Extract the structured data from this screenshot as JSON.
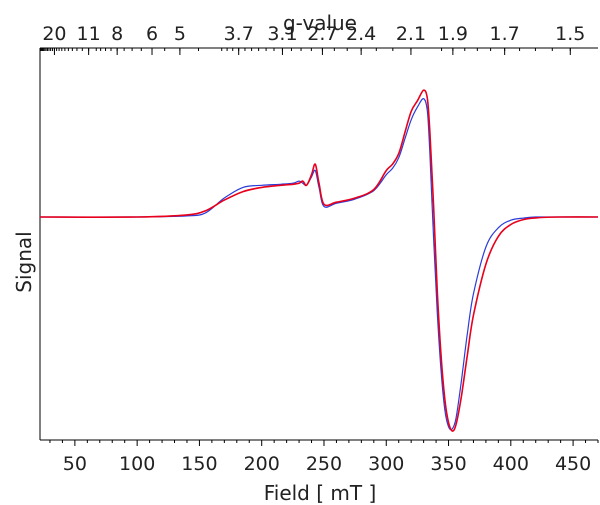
{
  "chart_data": {
    "type": "line",
    "xlabel": "Field [ mT ]",
    "ylabel": "Signal",
    "top_axis_label": "g-value",
    "xlim": [
      22,
      470
    ],
    "ylim": [
      -1.0,
      0.62
    ],
    "x_ticks": [
      50,
      100,
      150,
      200,
      250,
      300,
      350,
      400,
      450
    ],
    "x_tick_labels": [
      "50",
      "100",
      "150",
      "200",
      "250",
      "300",
      "350",
      "400",
      "450"
    ],
    "g_ticks": [
      20,
      11,
      8,
      6,
      5,
      3.7,
      3.1,
      2.7,
      2.4,
      2.1,
      1.9,
      1.7,
      1.5
    ],
    "g_tick_labels": [
      "20",
      "11",
      "8",
      "6",
      "5",
      "3.7",
      "3.1",
      "2.7",
      "2.4",
      "2.1",
      "1.9",
      "1.7",
      "1.5"
    ],
    "frequency_ghz_implied_by_axes": 9.4,
    "series": [
      {
        "color": "#e8001c",
        "x": [
          22,
          100,
          140,
          155,
          170,
          185,
          200,
          215,
          225,
          230,
          233,
          236,
          240,
          243,
          246,
          250,
          260,
          275,
          290,
          300,
          305,
          310,
          315,
          320,
          325,
          330,
          333,
          335,
          338,
          341,
          344,
          347,
          350,
          353,
          356,
          360,
          365,
          370,
          380,
          390,
          400,
          410,
          420,
          440,
          470
        ],
        "y": [
          0.0,
          0.0,
          0.01,
          0.03,
          0.08,
          0.12,
          0.14,
          0.15,
          0.155,
          0.16,
          0.17,
          0.15,
          0.2,
          0.25,
          0.16,
          0.06,
          0.07,
          0.09,
          0.13,
          0.22,
          0.25,
          0.3,
          0.4,
          0.5,
          0.55,
          0.6,
          0.56,
          0.4,
          0.05,
          -0.35,
          -0.65,
          -0.85,
          -0.96,
          -1.0,
          -0.97,
          -0.85,
          -0.65,
          -0.46,
          -0.22,
          -0.09,
          -0.035,
          -0.012,
          -0.004,
          0.0,
          0.0
        ]
      },
      {
        "color": "#2a3cd8",
        "x": [
          22,
          100,
          140,
          155,
          170,
          185,
          200,
          215,
          225,
          230,
          233,
          236,
          240,
          243,
          246,
          250,
          260,
          275,
          290,
          300,
          305,
          310,
          315,
          320,
          325,
          330,
          333,
          335,
          338,
          341,
          344,
          347,
          350,
          353,
          356,
          360,
          365,
          370,
          380,
          390,
          400,
          410,
          420,
          440,
          470
        ],
        "y": [
          0.0,
          0.0,
          0.005,
          0.02,
          0.09,
          0.14,
          0.15,
          0.155,
          0.16,
          0.17,
          0.16,
          0.15,
          0.19,
          0.22,
          0.14,
          0.05,
          0.065,
          0.085,
          0.125,
          0.2,
          0.23,
          0.28,
          0.37,
          0.46,
          0.52,
          0.56,
          0.5,
          0.3,
          -0.1,
          -0.45,
          -0.72,
          -0.9,
          -0.98,
          -0.99,
          -0.94,
          -0.78,
          -0.55,
          -0.36,
          -0.14,
          -0.05,
          -0.015,
          -0.005,
          0.0,
          0.0,
          0.0
        ]
      }
    ]
  }
}
